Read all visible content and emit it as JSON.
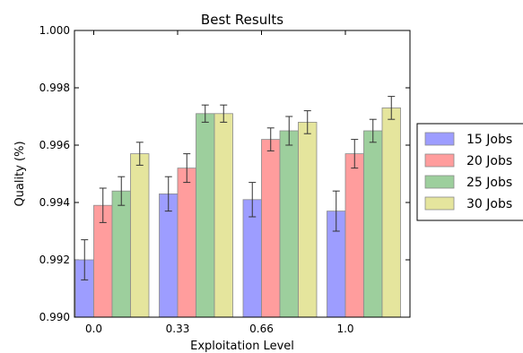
{
  "chart_data": {
    "type": "bar",
    "title": "Best Results",
    "xlabel": "Exploitation Level",
    "ylabel": "Quality (%)",
    "categories": [
      "0.0",
      "0.33",
      "0.66",
      "1.0"
    ],
    "ylim": [
      0.99,
      1.0
    ],
    "yticks": [
      "0.990",
      "0.992",
      "0.994",
      "0.996",
      "0.998",
      "1.000"
    ],
    "grid": false,
    "legend_position": "right, outside plot",
    "series": [
      {
        "name": "15 Jobs",
        "color": "#9d9dff",
        "values": [
          0.992,
          0.9943,
          0.9941,
          0.9937
        ],
        "errors": [
          0.0007,
          0.0006,
          0.0006,
          0.0007
        ]
      },
      {
        "name": "20 Jobs",
        "color": "#ff9d9d",
        "values": [
          0.9939,
          0.9952,
          0.9962,
          0.9957
        ],
        "errors": [
          0.0006,
          0.0005,
          0.0004,
          0.0005
        ]
      },
      {
        "name": "25 Jobs",
        "color": "#9dcf9d",
        "values": [
          0.9944,
          0.9971,
          0.9965,
          0.9965
        ],
        "errors": [
          0.0005,
          0.0003,
          0.0005,
          0.0004
        ]
      },
      {
        "name": "30 Jobs",
        "color": "#e5e59d",
        "values": [
          0.9957,
          0.9971,
          0.9968,
          0.9973
        ],
        "errors": [
          0.0004,
          0.0003,
          0.0004,
          0.0004
        ]
      }
    ]
  }
}
